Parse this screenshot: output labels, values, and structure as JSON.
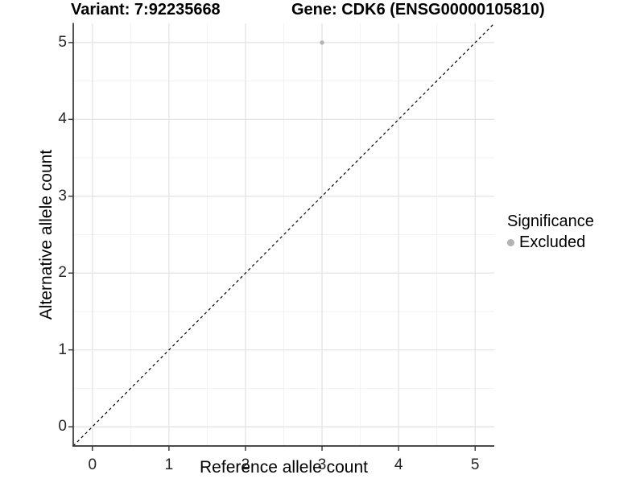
{
  "chart_data": {
    "type": "scatter",
    "titles": [
      "Variant: 7:92235668",
      "Gene: CDK6 (ENSG00000105810)"
    ],
    "xlabel": "Reference allele count",
    "ylabel": "Alternative allele count",
    "xlim": [
      -0.25,
      5.25
    ],
    "ylim": [
      -0.25,
      5.25
    ],
    "x_ticks": [
      0,
      1,
      2,
      3,
      4,
      5
    ],
    "y_ticks": [
      0,
      1,
      2,
      3,
      4,
      5
    ],
    "minor_step": 0.5,
    "grid": {
      "enabled": true,
      "major_color": "#e6e6e6",
      "minor_color": "#f2f2f2"
    },
    "axis_color": "#333333",
    "background": "#ffffff",
    "reference_line": {
      "type": "identity (y = x)",
      "style": "dashed",
      "color": "#000000"
    },
    "series": [
      {
        "name": "Excluded",
        "color": "#b3b3b3",
        "points": [
          {
            "x": 3,
            "y": 5
          }
        ]
      }
    ],
    "legend": {
      "title": "Significance",
      "position": "right",
      "items": [
        {
          "label": "Excluded",
          "color": "#b3b3b3"
        }
      ]
    }
  }
}
